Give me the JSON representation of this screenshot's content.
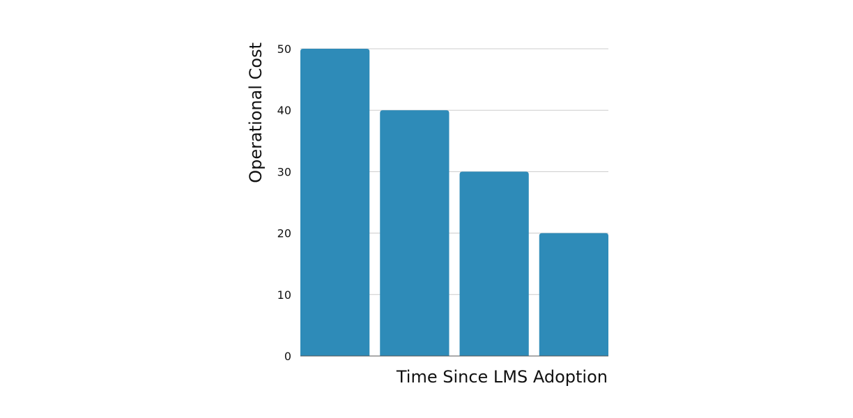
{
  "chart_data": {
    "type": "bar",
    "title": "",
    "xlabel": "Time Since LMS Adoption",
    "ylabel": "Operational Cost",
    "categories": [
      "",
      "",
      "",
      ""
    ],
    "values": [
      50,
      40,
      30,
      20
    ],
    "ylim": [
      0,
      50
    ],
    "yticks": [
      0,
      10,
      20,
      30,
      40,
      50
    ],
    "grid": true,
    "colors": {
      "bar": "#2e8bb8",
      "grid": "#cccccc",
      "axis": "#555555",
      "text": "#111111"
    }
  }
}
